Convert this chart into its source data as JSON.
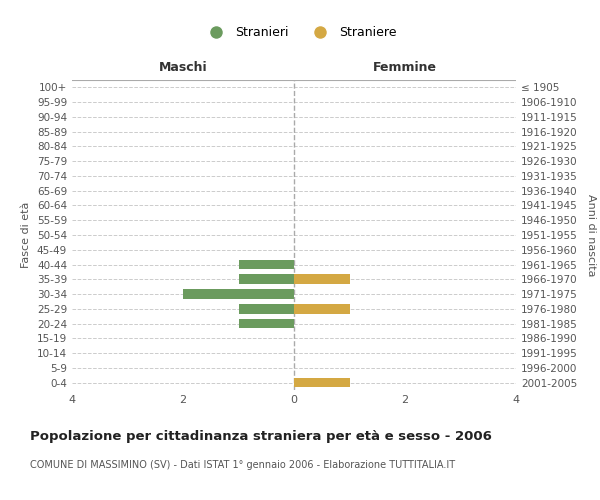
{
  "age_groups": [
    "100+",
    "95-99",
    "90-94",
    "85-89",
    "80-84",
    "75-79",
    "70-74",
    "65-69",
    "60-64",
    "55-59",
    "50-54",
    "45-49",
    "40-44",
    "35-39",
    "30-34",
    "25-29",
    "20-24",
    "15-19",
    "10-14",
    "5-9",
    "0-4"
  ],
  "birth_years": [
    "≤ 1905",
    "1906-1910",
    "1911-1915",
    "1916-1920",
    "1921-1925",
    "1926-1930",
    "1931-1935",
    "1936-1940",
    "1941-1945",
    "1946-1950",
    "1951-1955",
    "1956-1960",
    "1961-1965",
    "1966-1970",
    "1971-1975",
    "1976-1980",
    "1981-1985",
    "1986-1990",
    "1991-1995",
    "1996-2000",
    "2001-2005"
  ],
  "maschi": [
    0,
    0,
    0,
    0,
    0,
    0,
    0,
    0,
    0,
    0,
    0,
    0,
    1,
    1,
    2,
    1,
    1,
    0,
    0,
    0,
    0
  ],
  "femmine": [
    0,
    0,
    0,
    0,
    0,
    0,
    0,
    0,
    0,
    0,
    0,
    0,
    0,
    1,
    0,
    1,
    0,
    0,
    0,
    0,
    1
  ],
  "color_maschi": "#6b9b5e",
  "color_femmine": "#d4a843",
  "title": "Popolazione per cittadinanza straniera per età e sesso - 2006",
  "subtitle": "COMUNE DI MASSIMINO (SV) - Dati ISTAT 1° gennaio 2006 - Elaborazione TUTTITALIA.IT",
  "xlabel_left": "Maschi",
  "xlabel_right": "Femmine",
  "ylabel_left": "Fasce di età",
  "ylabel_right": "Anni di nascita",
  "legend_maschi": "Stranieri",
  "legend_femmine": "Straniere",
  "xlim": 4,
  "background_color": "#ffffff",
  "grid_color": "#cccccc"
}
